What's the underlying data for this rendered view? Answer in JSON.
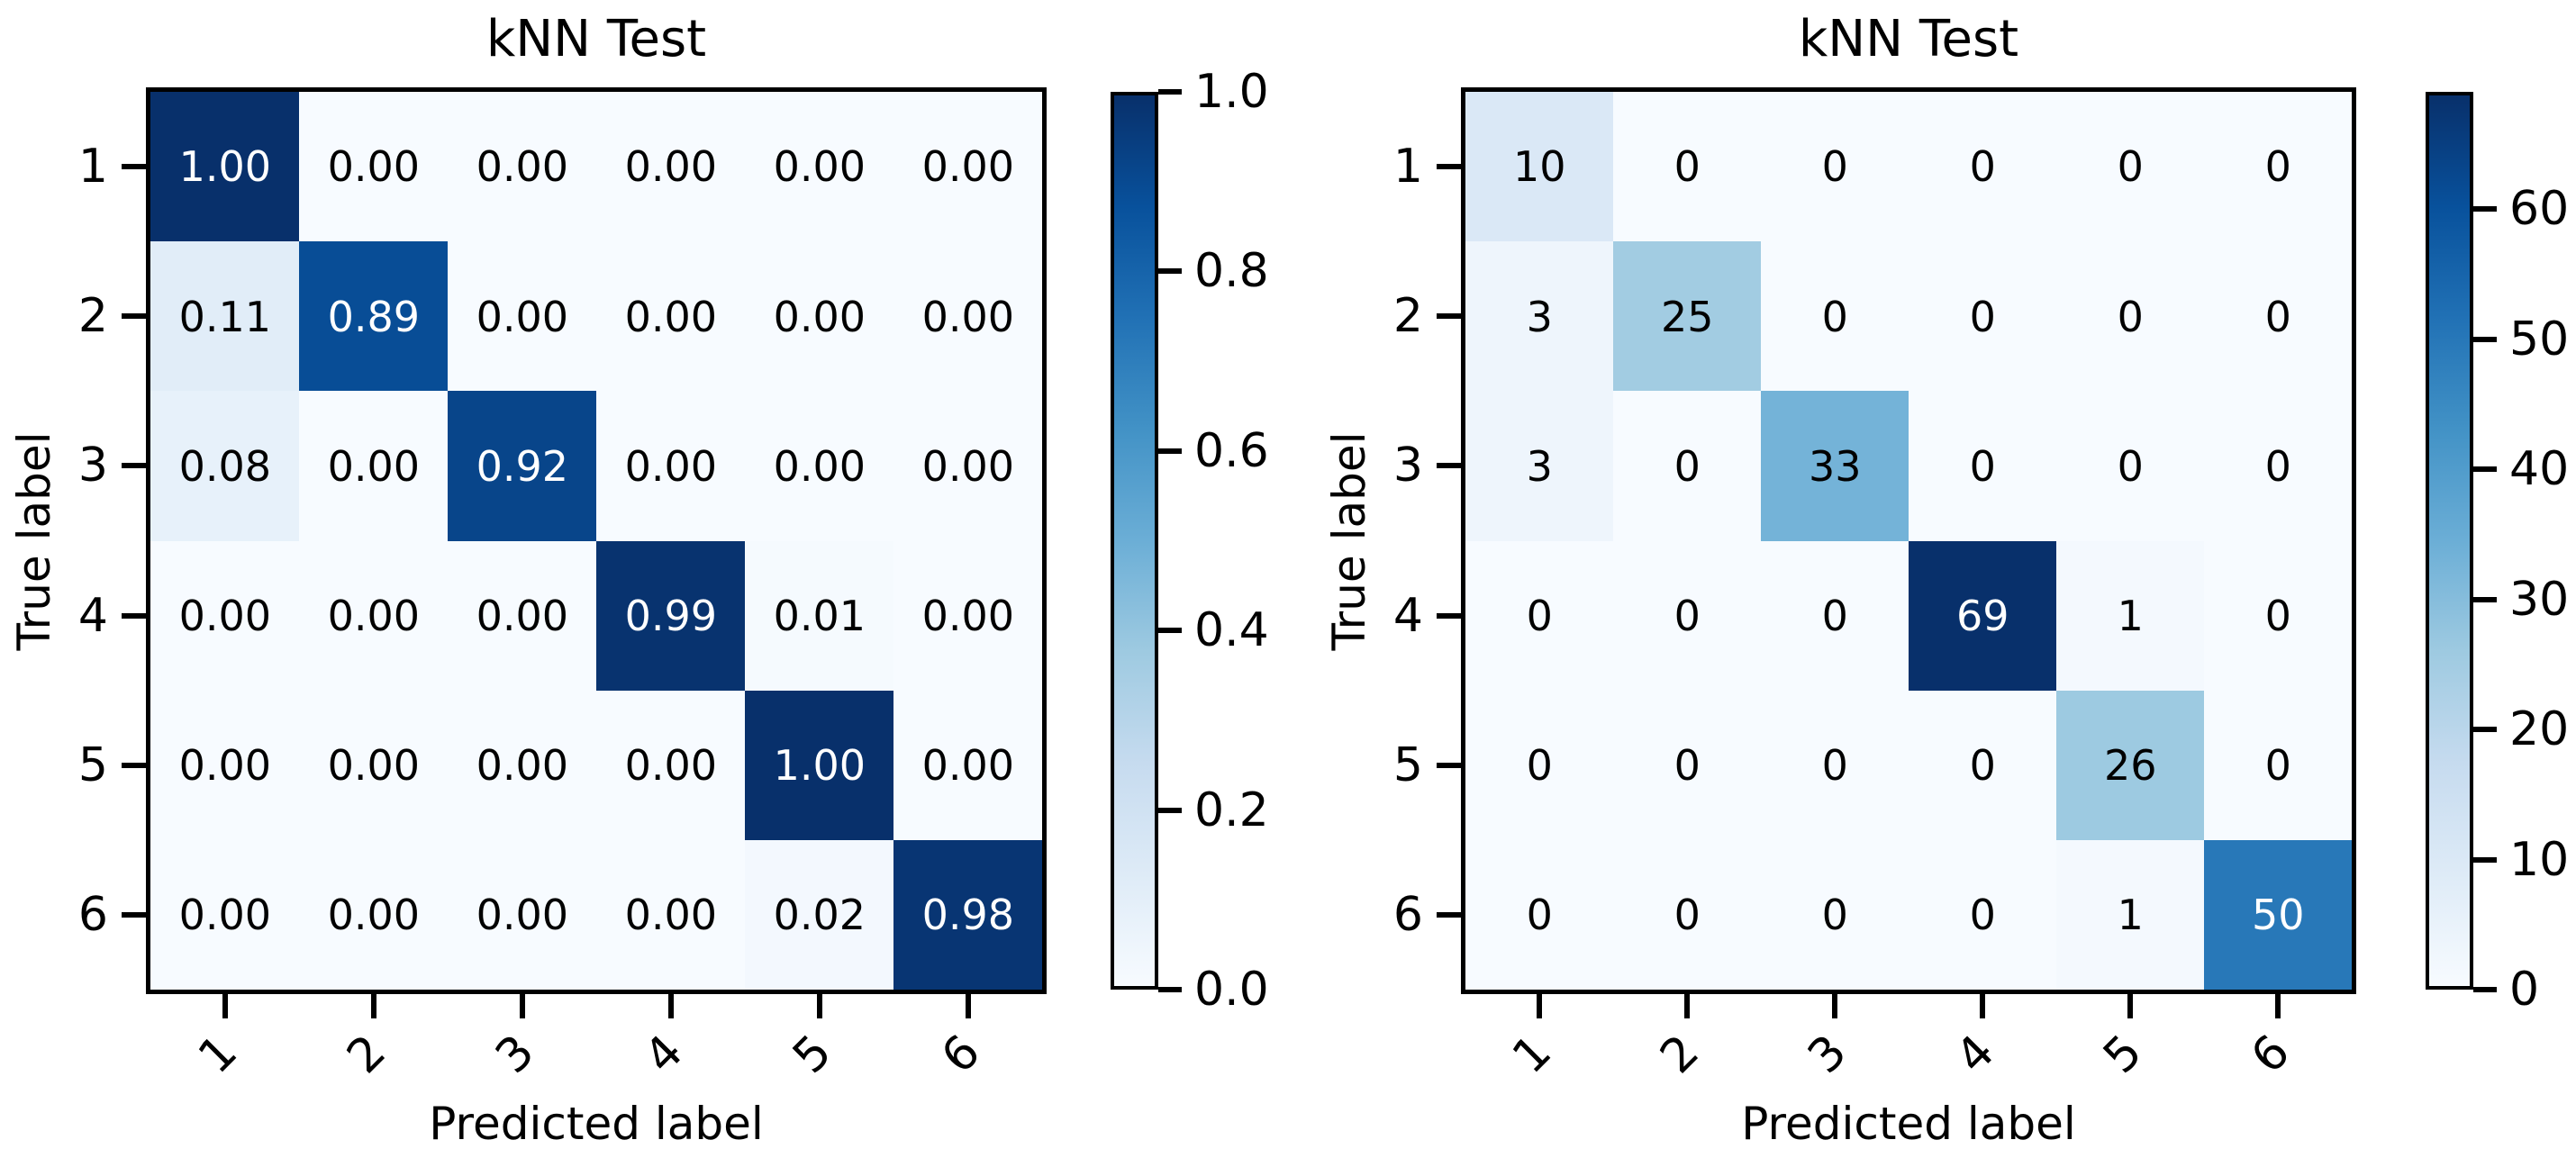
{
  "figure": {
    "background": "#ffffff",
    "spine_color": "#000000",
    "text_color_dark": "#000000",
    "text_color_light": "#ffffff"
  },
  "colormap_blues_anchors": [
    "#f7fbff",
    "#deebf7",
    "#c6dbef",
    "#9ecae1",
    "#6baed6",
    "#4292c6",
    "#2171b5",
    "#08519c",
    "#08306b"
  ],
  "chart_data": [
    {
      "type": "heatmap",
      "title": "kNN Test",
      "xlabel": "Predicted label",
      "ylabel": "True label",
      "x_ticklabels": [
        "1",
        "2",
        "3",
        "4",
        "5",
        "6"
      ],
      "y_ticklabels": [
        "1",
        "2",
        "3",
        "4",
        "5",
        "6"
      ],
      "matrix": [
        [
          1.0,
          0.0,
          0.0,
          0.0,
          0.0,
          0.0
        ],
        [
          0.11,
          0.89,
          0.0,
          0.0,
          0.0,
          0.0
        ],
        [
          0.08,
          0.0,
          0.92,
          0.0,
          0.0,
          0.0
        ],
        [
          0.0,
          0.0,
          0.0,
          0.99,
          0.01,
          0.0
        ],
        [
          0.0,
          0.0,
          0.0,
          0.0,
          1.0,
          0.0
        ],
        [
          0.0,
          0.0,
          0.0,
          0.0,
          0.02,
          0.98
        ]
      ],
      "value_format": "fixed2",
      "vmin": 0.0,
      "vmax": 1.0,
      "colormap": "Blues",
      "legend_position": "colorbar-right",
      "grid": false,
      "colorbar_ticks": [
        {
          "value": 0.0,
          "label": "0.0"
        },
        {
          "value": 0.2,
          "label": "0.2"
        },
        {
          "value": 0.4,
          "label": "0.4"
        },
        {
          "value": 0.6,
          "label": "0.6"
        },
        {
          "value": 0.8,
          "label": "0.8"
        },
        {
          "value": 1.0,
          "label": "1.0"
        }
      ]
    },
    {
      "type": "heatmap",
      "title": "kNN Test",
      "xlabel": "Predicted label",
      "ylabel": "True label",
      "x_ticklabels": [
        "1",
        "2",
        "3",
        "4",
        "5",
        "6"
      ],
      "y_ticklabels": [
        "1",
        "2",
        "3",
        "4",
        "5",
        "6"
      ],
      "matrix": [
        [
          10,
          0,
          0,
          0,
          0,
          0
        ],
        [
          3,
          25,
          0,
          0,
          0,
          0
        ],
        [
          3,
          0,
          33,
          0,
          0,
          0
        ],
        [
          0,
          0,
          0,
          69,
          1,
          0
        ],
        [
          0,
          0,
          0,
          0,
          26,
          0
        ],
        [
          0,
          0,
          0,
          0,
          1,
          50
        ]
      ],
      "value_format": "int",
      "vmin": 0,
      "vmax": 69,
      "colormap": "Blues",
      "legend_position": "colorbar-right",
      "grid": false,
      "colorbar_ticks": [
        {
          "value": 0,
          "label": "0"
        },
        {
          "value": 10,
          "label": "10"
        },
        {
          "value": 20,
          "label": "20"
        },
        {
          "value": 30,
          "label": "30"
        },
        {
          "value": 40,
          "label": "40"
        },
        {
          "value": 50,
          "label": "50"
        },
        {
          "value": 60,
          "label": "60"
        }
      ]
    }
  ]
}
